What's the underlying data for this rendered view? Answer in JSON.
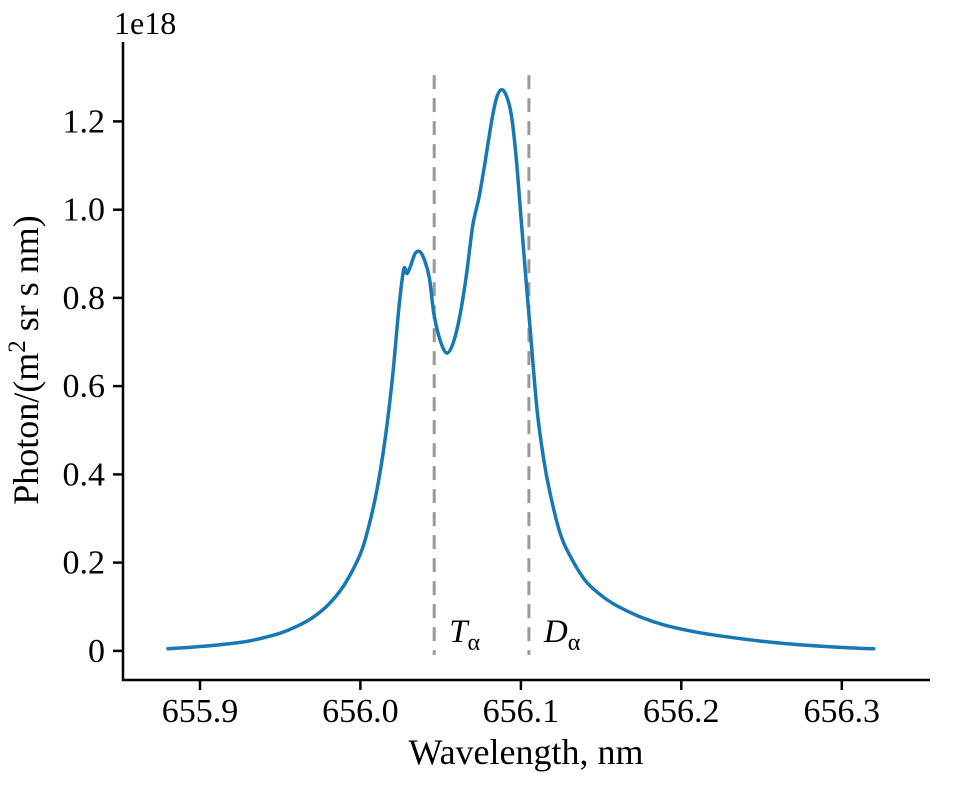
{
  "figure": {
    "background": "#ffffff",
    "offset_label": "1e18",
    "xlabel": "Wavelength, nm",
    "ylabel_prefix": "Photon/(m",
    "ylabel_sup": "2",
    "ylabel_suffix": " sr s nm)"
  },
  "chart_data": {
    "type": "line",
    "title": "",
    "xlabel": "Wavelength, nm",
    "ylabel": "Photon/(m^2 sr s nm)",
    "y_offset_multiplier": "1e18",
    "grid": false,
    "legend": false,
    "xlim": [
      655.852,
      656.355
    ],
    "ylim": [
      -0.066,
      1.38
    ],
    "xticks": [
      655.9,
      656.0,
      656.1,
      656.2,
      656.3
    ],
    "xtick_labels": [
      "655.9",
      "656.0",
      "656.1",
      "656.2",
      "656.3"
    ],
    "yticks": [
      0,
      0.2,
      0.4,
      0.6,
      0.8,
      1.0,
      1.2
    ],
    "ytick_labels": [
      "0",
      "0.2",
      "0.4",
      "0.6",
      "0.8",
      "1.0",
      "1.2"
    ],
    "line_color": "#1878b4",
    "vline_color": "#999999",
    "axis_color": "#000000",
    "series": [
      {
        "name": "spectral-line-profile",
        "x": [
          655.88,
          655.89,
          655.9,
          655.91,
          655.92,
          655.93,
          655.94,
          655.95,
          655.96,
          655.97,
          655.98,
          655.99,
          656.0,
          656.005,
          656.01,
          656.015,
          656.02,
          656.024,
          656.027,
          656.029,
          656.031,
          656.034,
          656.037,
          656.04,
          656.043,
          656.046,
          656.05,
          656.054,
          656.058,
          656.062,
          656.066,
          656.07,
          656.074,
          656.078,
          656.082,
          656.085,
          656.088,
          656.091,
          656.094,
          656.097,
          656.1,
          656.103,
          656.106,
          656.11,
          656.114,
          656.118,
          656.124,
          656.13,
          656.14,
          656.15,
          656.16,
          656.175,
          656.19,
          656.21,
          656.23,
          656.25,
          656.27,
          656.29,
          656.31,
          656.32
        ],
        "y": [
          0.005,
          0.007,
          0.01,
          0.013,
          0.017,
          0.022,
          0.03,
          0.04,
          0.055,
          0.075,
          0.105,
          0.15,
          0.22,
          0.28,
          0.36,
          0.47,
          0.62,
          0.78,
          0.865,
          0.855,
          0.87,
          0.9,
          0.905,
          0.885,
          0.845,
          0.76,
          0.7,
          0.675,
          0.7,
          0.76,
          0.85,
          0.965,
          1.03,
          1.115,
          1.205,
          1.255,
          1.272,
          1.258,
          1.215,
          1.12,
          0.985,
          0.85,
          0.72,
          0.55,
          0.44,
          0.36,
          0.272,
          0.22,
          0.16,
          0.126,
          0.102,
          0.076,
          0.058,
          0.042,
          0.031,
          0.022,
          0.015,
          0.01,
          0.006,
          0.005
        ]
      }
    ],
    "vlines": [
      {
        "id": "t-alpha",
        "x": 656.046,
        "label": "T",
        "sub": "α",
        "y_top": 1.305
      },
      {
        "id": "d-alpha",
        "x": 656.105,
        "label": "D",
        "sub": "α",
        "y_top": 1.305
      }
    ]
  }
}
